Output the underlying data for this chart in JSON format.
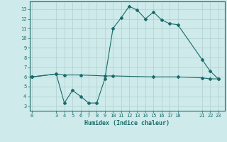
{
  "line1_x": [
    0,
    3,
    4,
    5,
    6,
    7,
    8,
    9,
    10,
    11,
    12,
    13,
    14,
    15,
    16,
    17,
    18,
    21,
    22,
    23
  ],
  "line1_y": [
    6.0,
    6.3,
    3.3,
    4.6,
    4.0,
    3.3,
    3.3,
    5.8,
    11.0,
    12.1,
    13.3,
    12.9,
    12.0,
    12.7,
    11.9,
    11.5,
    11.4,
    7.8,
    6.6,
    5.8
  ],
  "line2_x": [
    0,
    3,
    4,
    6,
    9,
    10,
    15,
    18,
    21,
    22,
    23
  ],
  "line2_y": [
    6.0,
    6.3,
    6.2,
    6.2,
    6.1,
    6.1,
    6.0,
    6.0,
    5.9,
    5.8,
    5.8
  ],
  "line_color": "#1a6b6b",
  "bg_color": "#ceeaea",
  "grid_color": "#b0d0d0",
  "xlabel": "Humidex (Indice chaleur)",
  "xticks": [
    0,
    3,
    4,
    5,
    6,
    7,
    8,
    9,
    10,
    11,
    12,
    13,
    14,
    15,
    16,
    17,
    18,
    21,
    22,
    23
  ],
  "yticks": [
    3,
    4,
    5,
    6,
    7,
    8,
    9,
    10,
    11,
    12,
    13
  ],
  "xlim": [
    -0.3,
    23.8
  ],
  "ylim": [
    2.5,
    13.8
  ],
  "markersize": 2.0,
  "linewidth": 0.8
}
